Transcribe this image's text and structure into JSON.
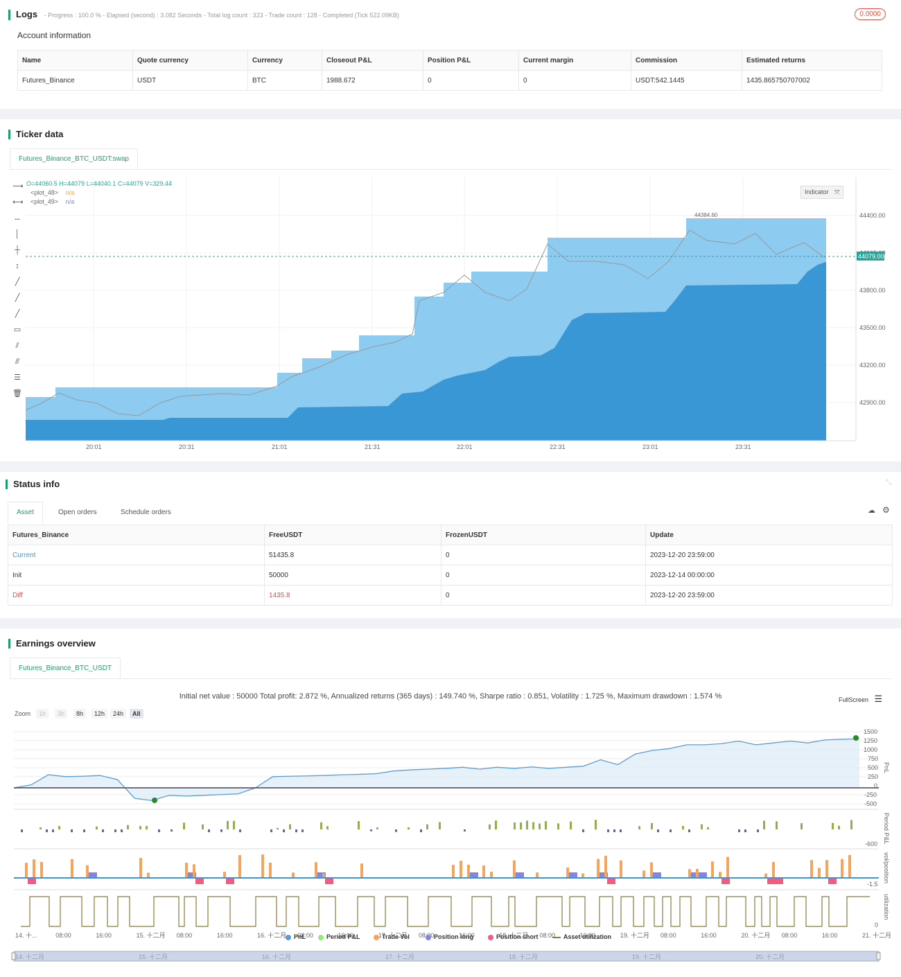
{
  "logs": {
    "title": "Logs",
    "progress": "- Progress : 100.0 % - Elapsed (second) : 3.082  Seconds - Total log count : 323 - Trade count : 128 - Completed (Tick 522.09KB)",
    "badge": "0.0000"
  },
  "account": {
    "title": "Account information",
    "headers": [
      "Name",
      "Quote currency",
      "Currency",
      "Closeout P&L",
      "Position P&L",
      "Current margin",
      "Commission",
      "Estimated returns"
    ],
    "row": [
      "Futures_Binance",
      "USDT",
      "BTC",
      "1988.672",
      "0",
      "0",
      "USDT:542.1445",
      "1435.865750707002"
    ]
  },
  "ticker": {
    "title": "Ticker data",
    "tab": "Futures_Binance_BTC_USDT:swap",
    "ohlc": "O=44060.5 H=44079 L=44040.1 C=44079 V=329.44",
    "plot48": "<plot_48>",
    "plot49": "<plot_49>",
    "na": "n/a",
    "indicator_btn": "Indicator",
    "high_marker": "44384.60",
    "price_tag": "44079.00",
    "y_ticks": [
      "44400.00",
      "44100.00",
      "43800.00",
      "43500.00",
      "43200.00",
      "42900.00"
    ],
    "x_ticks": [
      "20:01",
      "20:31",
      "21:01",
      "21:31",
      "22:01",
      "22:31",
      "23:01",
      "23:31"
    ],
    "colors": {
      "upper_band": "#8ecbf0",
      "lower_band": "#3a97d6",
      "accent": "#1aa260"
    }
  },
  "status": {
    "title": "Status info",
    "tabs": [
      "Asset",
      "Open orders",
      "Schedule orders"
    ],
    "headers": [
      "Futures_Binance",
      "FreeUSDT",
      "FrozenUSDT",
      "Update"
    ],
    "rows": [
      [
        "Current",
        "51435.8",
        "0",
        "2023-12-20 23:59:00"
      ],
      [
        "Init",
        "50000",
        "0",
        "2023-12-14 00:00:00"
      ],
      [
        "Diff",
        "1435.8",
        "0",
        "2023-12-20 23:59:00"
      ]
    ]
  },
  "earnings": {
    "title": "Earnings overview",
    "tab": "Futures_Binance_BTC_USDT",
    "summary": "Initial net value : 50000 Total profit: 2.872 %, Annualized returns (365 days) : 149.740 %, Sharpe ratio : 0.851, Volatility : 1.725 %, Maximum drawdown : 1.574 %",
    "fullscreen": "FullScreen",
    "zoom_label": "Zoom",
    "zoom_buttons": [
      "1h",
      "3h",
      "8h",
      "12h",
      "24h",
      "All"
    ],
    "pnl_ticks": [
      "1500",
      "1250",
      "1000",
      "750",
      "500",
      "250",
      "0",
      "-250",
      "-500"
    ],
    "period_tick": "-600",
    "vol_tick": "-1.5",
    "util_tick": "0",
    "axis_titles": [
      "PnL",
      "Period P&L",
      "vol/position",
      "utilization"
    ],
    "x_ticks": [
      "14. 十...",
      "08:00",
      "16:00",
      "15. 十二月",
      "08:00",
      "16:00",
      "16. 十二月",
      "08:00",
      "16:00",
      "17. 十二月",
      "08:00",
      "16:00",
      "18. 十二月",
      "08:00",
      "16:00",
      "19. 十二月",
      "08:00",
      "16:00",
      "20. 十二月",
      "08:00",
      "16:00",
      "21. 十二月"
    ],
    "navigator_ticks": [
      "14. 十二月",
      "15. 十二月",
      "16. 十二月",
      "17. 十二月",
      "18. 十二月",
      "19. 十二月",
      "20. 十二月"
    ],
    "legend": [
      {
        "label": "PnL",
        "color": "#5b9bd5"
      },
      {
        "label": "Period P&L",
        "color": "#90ed7d"
      },
      {
        "label": "Trade Vol",
        "color": "#f7a35c"
      },
      {
        "label": "Position long",
        "color": "#8085e9"
      },
      {
        "label": "Position short",
        "color": "#f15c80"
      },
      {
        "label": "Asset utilization",
        "color": "#8a7a3a"
      }
    ]
  },
  "chart_data": {
    "type": "line",
    "title": "",
    "series": [
      {
        "name": "PnL",
        "values": [
          0,
          80,
          350,
          300,
          310,
          330,
          220,
          -280,
          -340,
          -200,
          -220,
          -200,
          -180,
          -160,
          0,
          300,
          310,
          320,
          330,
          350,
          360,
          380,
          450,
          480,
          500,
          520,
          550,
          500,
          550,
          520,
          560,
          520,
          550,
          580,
          750,
          620,
          900,
          1000,
          1050,
          1150,
          1150,
          1180,
          1250,
          1150,
          1200,
          1250,
          1200,
          1280,
          1300,
          1310
        ]
      }
    ],
    "ylim": [
      -500,
      1500
    ]
  }
}
